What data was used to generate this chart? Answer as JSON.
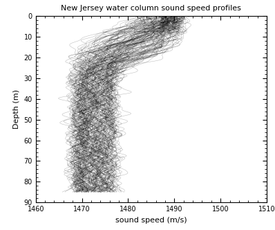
{
  "title": "New Jersey water column sound speed profiles",
  "xlabel": "sound speed (m/s)",
  "ylabel": "Depth (m)",
  "xlim": [
    1460,
    1510
  ],
  "ylim": [
    90,
    0
  ],
  "xticks": [
    1460,
    1470,
    1480,
    1490,
    1500,
    1510
  ],
  "yticks": [
    0,
    10,
    20,
    30,
    40,
    50,
    60,
    70,
    80,
    90
  ],
  "line_color": "black",
  "line_alpha": 0.25,
  "line_width": 0.4,
  "n_profiles": 150,
  "seed": 42,
  "figsize": [
    3.98,
    3.32
  ],
  "dpi": 100,
  "title_fontsize": 8,
  "label_fontsize": 8,
  "tick_fontsize": 7
}
